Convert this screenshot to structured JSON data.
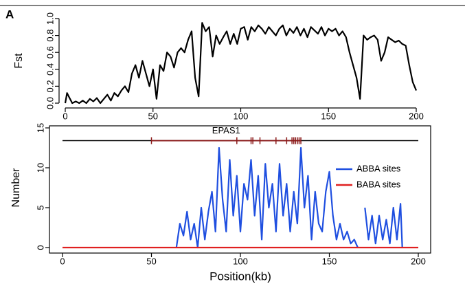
{
  "panel_label": "A",
  "chart_data": [
    {
      "type": "line",
      "ylabel": "Fst",
      "xlim": [
        0,
        200
      ],
      "xticks": [
        0,
        50,
        100,
        150,
        200
      ],
      "ylim": [
        0,
        1
      ],
      "yticks": [
        {
          "value": 0,
          "label": "0.0"
        },
        0.2,
        0.4,
        0.6,
        0.8,
        {
          "value": 1,
          "label": "1.0"
        }
      ],
      "series": [
        {
          "color": "#000000",
          "x": [
            0,
            1,
            2,
            4,
            6,
            8,
            10,
            12,
            14,
            16,
            18,
            20,
            22,
            24,
            26,
            28,
            30,
            32,
            34,
            36,
            38,
            40,
            42,
            44,
            46,
            48,
            50,
            52,
            54,
            56,
            58,
            60,
            62,
            64,
            66,
            68,
            70,
            72,
            74,
            76,
            78,
            80,
            82,
            84,
            86,
            88,
            90,
            92,
            94,
            96,
            98,
            100,
            102,
            104,
            106,
            108,
            110,
            112,
            114,
            116,
            118,
            120,
            122,
            124,
            126,
            128,
            130,
            132,
            134,
            136,
            138,
            140,
            142,
            144,
            146,
            148,
            150,
            152,
            154,
            156,
            158,
            160,
            162,
            164,
            166,
            168,
            170,
            172,
            174,
            176,
            178,
            180,
            182,
            184,
            186,
            188,
            190,
            192,
            194,
            196,
            198,
            200
          ],
          "values": [
            0.0,
            0.12,
            0.08,
            0.0,
            0.02,
            0.0,
            0.03,
            0.0,
            0.05,
            0.02,
            0.06,
            0.0,
            0.05,
            0.1,
            0.03,
            0.12,
            0.08,
            0.15,
            0.2,
            0.13,
            0.35,
            0.45,
            0.3,
            0.5,
            0.35,
            0.2,
            0.4,
            0.05,
            0.45,
            0.38,
            0.6,
            0.55,
            0.42,
            0.6,
            0.65,
            0.6,
            0.75,
            0.85,
            0.3,
            0.08,
            0.95,
            0.85,
            0.9,
            0.55,
            0.8,
            0.7,
            0.78,
            0.85,
            0.7,
            0.82,
            0.7,
            0.88,
            0.9,
            0.75,
            0.9,
            0.85,
            0.92,
            0.88,
            0.82,
            0.9,
            0.85,
            0.8,
            0.88,
            0.92,
            0.8,
            0.88,
            0.83,
            0.9,
            0.8,
            0.88,
            0.78,
            0.9,
            0.86,
            0.82,
            0.9,
            0.8,
            0.88,
            0.85,
            0.88,
            0.8,
            0.85,
            0.78,
            0.6,
            0.45,
            0.3,
            0.05,
            0.8,
            0.75,
            0.78,
            0.8,
            0.75,
            0.5,
            0.6,
            0.78,
            0.75,
            0.72,
            0.74,
            0.7,
            0.68,
            0.45,
            0.25,
            0.15
          ]
        }
      ]
    },
    {
      "type": "line",
      "xlabel": "Position(kb)",
      "ylabel": "Number",
      "xlim": [
        0,
        200
      ],
      "xticks": [
        0,
        50,
        100,
        150,
        200
      ],
      "ylim": [
        0,
        15
      ],
      "yticks": [
        0,
        5,
        10,
        15
      ],
      "legend": "upper right",
      "gene": {
        "name": "EPAS1",
        "level": 13.4,
        "start": 50,
        "end": 134,
        "color": "#8b1a1a",
        "exons": [
          50,
          98,
          106,
          107,
          111,
          120,
          126,
          129,
          130,
          131,
          132,
          133,
          134
        ]
      },
      "series": [
        {
          "name": "ABBA sites",
          "color": "#1f4fe0",
          "x": [
            64,
            66,
            68,
            70,
            72,
            74,
            76,
            78,
            80,
            82,
            84,
            86,
            88,
            90,
            92,
            94,
            96,
            98,
            100,
            102,
            104,
            106,
            108,
            110,
            112,
            114,
            116,
            118,
            120,
            122,
            124,
            126,
            128,
            130,
            132,
            134,
            136,
            138,
            140,
            142,
            144,
            146,
            148,
            150,
            152,
            154,
            156,
            158,
            160,
            162,
            164,
            166,
            168,
            170,
            172,
            174,
            176,
            178,
            180,
            182,
            184,
            186,
            188,
            190,
            191
          ],
          "values": [
            0,
            3,
            1.5,
            4.5,
            1,
            3,
            0,
            5,
            1,
            4.5,
            7,
            2,
            12.5,
            6,
            2,
            11,
            4,
            9,
            2,
            8,
            6,
            11,
            4,
            9,
            1,
            10.5,
            5,
            8,
            2,
            10.5,
            4,
            8,
            2,
            7,
            3,
            12.5,
            5,
            9,
            1,
            7,
            3,
            2,
            7,
            9.5,
            4,
            1,
            3,
            1,
            2,
            0.5,
            1,
            0,
            null,
            5,
            1,
            4,
            0.5,
            4,
            1,
            3.5,
            0.5,
            5,
            1,
            5.5,
            0
          ]
        },
        {
          "name": "BABA sites",
          "color": "#e02020",
          "x": [
            0,
            200
          ],
          "values": [
            0,
            0
          ]
        }
      ]
    }
  ]
}
